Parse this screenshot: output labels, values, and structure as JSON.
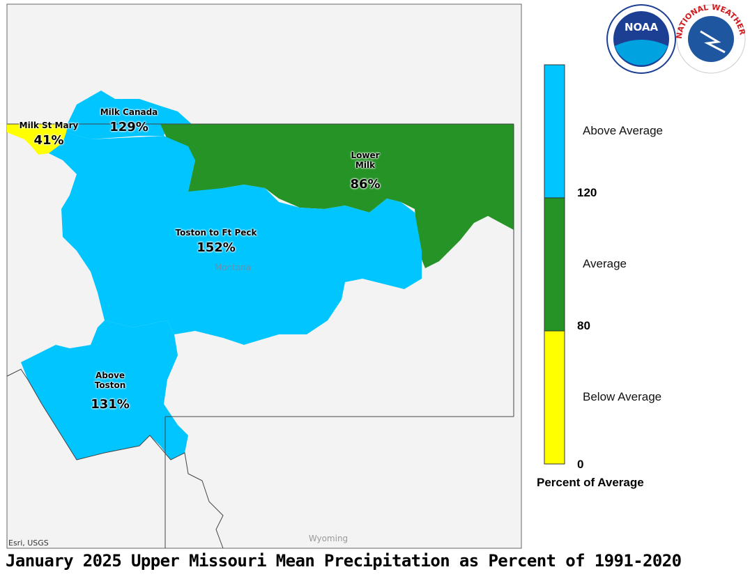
{
  "title": "January 2025 Upper Missouri Mean Precipitation as Percent of 1991-2020",
  "regions": [
    {
      "name": "Milk St Mary",
      "value": 41,
      "value_label": "41%",
      "color": "#ffff00"
    },
    {
      "name": "Milk Canada",
      "value": 129,
      "value_label": "129%",
      "color": "#00c5ff"
    },
    {
      "name": "Lower Milk",
      "value": 86,
      "value_label": "86%",
      "color": "#259325"
    },
    {
      "name": "Toston to Ft Peck",
      "value": 152,
      "value_label": "152%",
      "color": "#00c5ff"
    },
    {
      "name": "Above Toston",
      "value": 131,
      "value_label": "131%",
      "color": "#00c5ff"
    }
  ],
  "places": [
    "Montana",
    "Wyoming"
  ],
  "attribution": "Esri, USGS",
  "legend": {
    "title": "Percent of Average",
    "classes": [
      {
        "label": "Above Average",
        "color": "#00c5ff"
      },
      {
        "label": "Average",
        "color": "#259325"
      },
      {
        "label": "Below Average",
        "color": "#ffff00"
      }
    ],
    "breaks": [
      120,
      80,
      0
    ]
  },
  "logos": {
    "noaa": "NOAA",
    "nws": "NATIONAL WEATHER SERVICE"
  }
}
